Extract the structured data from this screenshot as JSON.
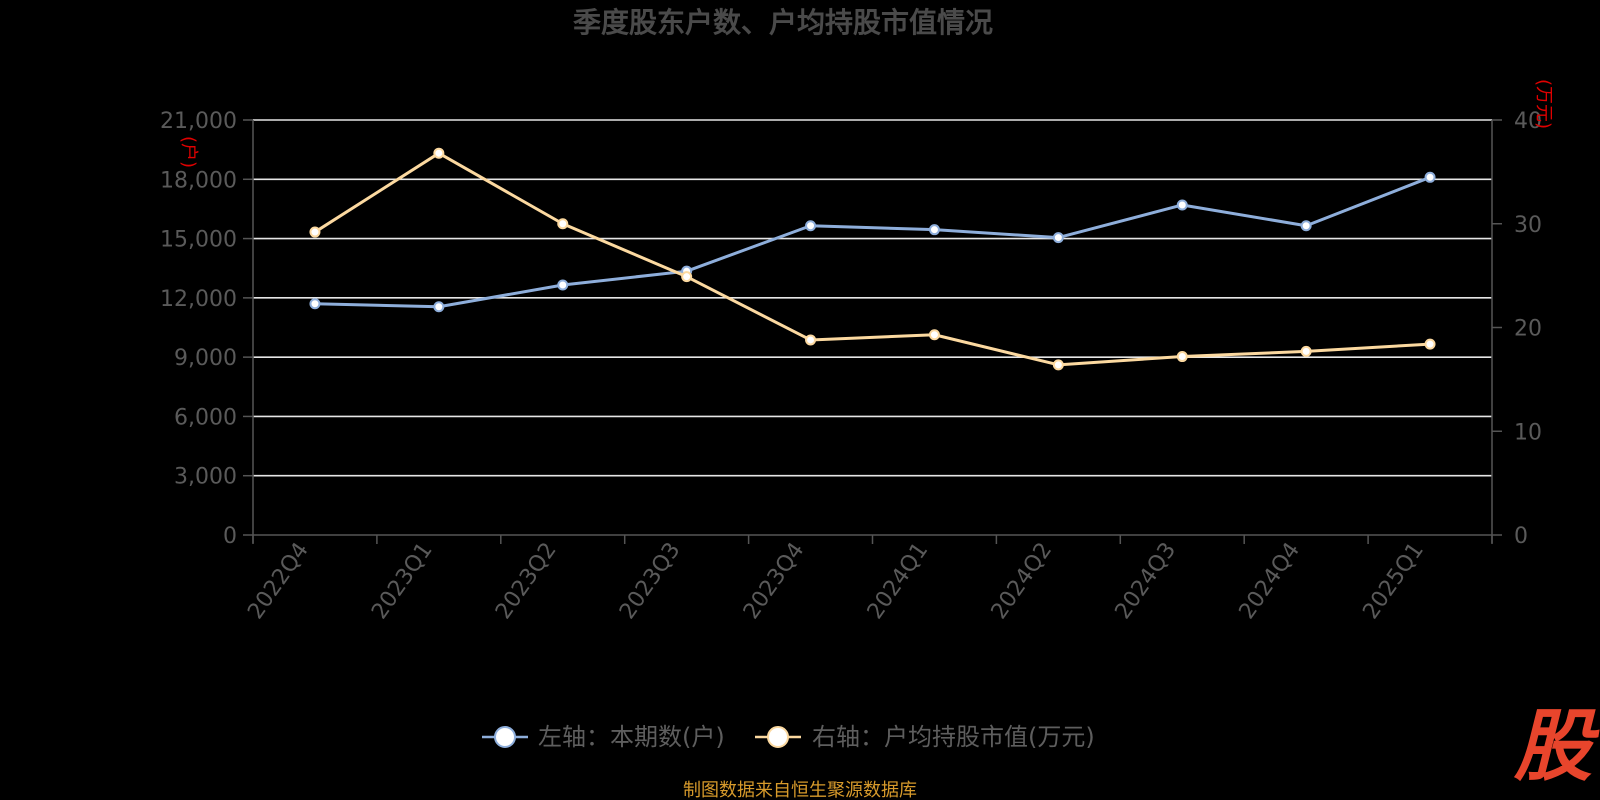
{
  "chart_data": {
    "type": "line",
    "title": "季度股东户数、户均持股市值情况",
    "categories": [
      "2022Q4",
      "2023Q1",
      "2023Q2",
      "2023Q3",
      "2023Q4",
      "2024Q1",
      "2024Q2",
      "2024Q3",
      "2024Q4",
      "2025Q1"
    ],
    "y_left": {
      "ticks": [
        "0",
        "3,000",
        "6,000",
        "9,000",
        "12,000",
        "15,000",
        "18,000",
        "21,000"
      ],
      "unit": "(户)",
      "ylim": [
        0,
        21000
      ]
    },
    "y_right": {
      "ticks": [
        "0",
        "10",
        "20",
        "30",
        "40"
      ],
      "unit": "(万元)",
      "ylim": [
        0,
        40
      ]
    },
    "series": [
      {
        "name": "左轴：本期数(户)",
        "axis": "left",
        "color": "#8eaedb",
        "values": [
          11700,
          11550,
          12650,
          13350,
          15650,
          15450,
          15050,
          16700,
          15650,
          18100
        ]
      },
      {
        "name": "右轴：户均持股市值(万元)",
        "axis": "right",
        "color": "#fcd9a0",
        "values": [
          29.2,
          36.8,
          30.0,
          24.9,
          18.8,
          19.3,
          16.4,
          17.2,
          17.7,
          18.4
        ]
      }
    ],
    "grid": true,
    "legend_position": "bottom-center"
  },
  "source": "制图数据来自恒生聚源数据库",
  "logo_text": "股"
}
